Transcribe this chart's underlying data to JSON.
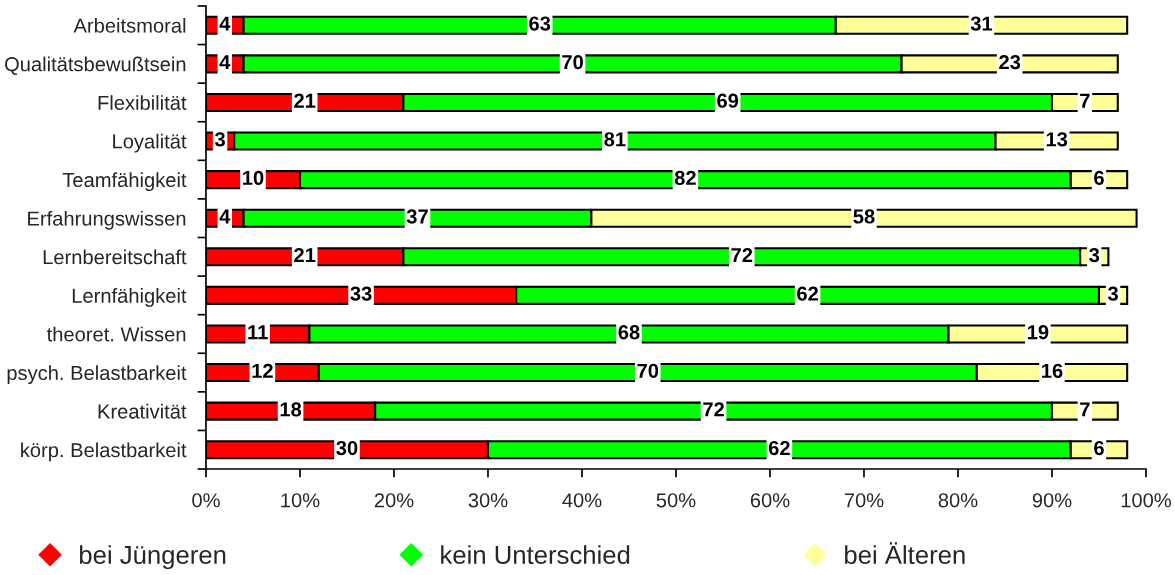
{
  "chart_data": {
    "type": "bar",
    "orientation": "horizontal",
    "stacked": true,
    "data_labels": true,
    "legend": "bottom",
    "grid": false,
    "categories": [
      "Arbeitsmoral",
      "Qualitätsbewußtsein",
      "Flexibilität",
      "Loyalität",
      "Teamfähigkeit",
      "Erfahrungswissen",
      "Lernbereitschaft",
      "Lernfähigkeit",
      "theoret. Wissen",
      "psych. Belastbarkeit",
      "Kreativität",
      "körp. Belastbarkeit"
    ],
    "series": [
      {
        "name": "bei Jüngeren",
        "color": "#ff0000",
        "values": [
          4,
          4,
          21,
          3,
          10,
          4,
          21,
          33,
          11,
          12,
          18,
          30
        ]
      },
      {
        "name": "kein Unterschied",
        "color": "#00ff00",
        "values": [
          63,
          70,
          69,
          81,
          82,
          37,
          72,
          62,
          68,
          70,
          72,
          62
        ]
      },
      {
        "name": "bei Älteren",
        "color": "#ffff99",
        "values": [
          31,
          23,
          7,
          13,
          6,
          58,
          3,
          3,
          19,
          16,
          7,
          6
        ]
      }
    ],
    "xlim": [
      0,
      100
    ],
    "xticks": [
      {
        "value": 0,
        "label": "0%"
      },
      {
        "value": 10,
        "label": "10%"
      },
      {
        "value": 20,
        "label": "20%"
      },
      {
        "value": 30,
        "label": "30%"
      },
      {
        "value": 40,
        "label": "40%"
      },
      {
        "value": 50,
        "label": "50%"
      },
      {
        "value": 60,
        "label": "60%"
      },
      {
        "value": 70,
        "label": "70%"
      },
      {
        "value": 80,
        "label": "80%"
      },
      {
        "value": 90,
        "label": "90%"
      },
      {
        "value": 100,
        "label": "100%"
      }
    ]
  }
}
